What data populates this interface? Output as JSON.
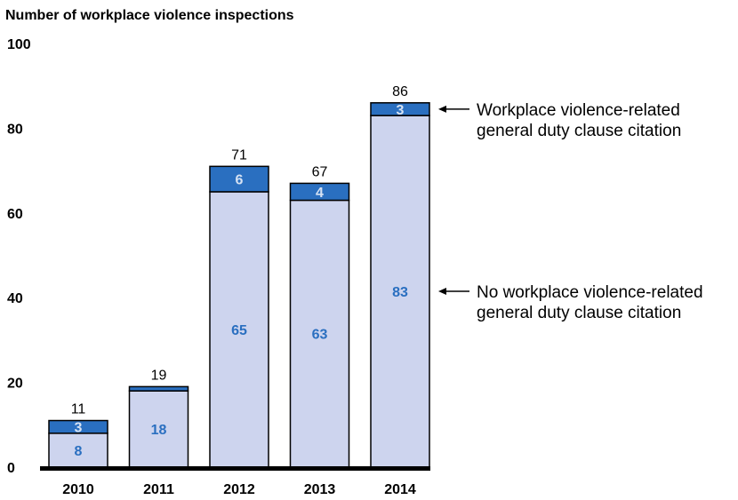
{
  "chart_data": {
    "type": "bar",
    "stacked": true,
    "title": "Number of workplace violence inspections",
    "categories": [
      "2010",
      "2011",
      "2012",
      "2013",
      "2014"
    ],
    "series": [
      {
        "name": "No workplace violence-related general duty clause citation",
        "values": [
          8,
          18,
          65,
          63,
          83
        ],
        "color": "#cdd4ee"
      },
      {
        "name": "Workplace violence-related general duty clause citation",
        "values": [
          3,
          1,
          6,
          4,
          3
        ],
        "color": "#2a6fc0"
      }
    ],
    "segment_labels": {
      "No workplace violence-related general duty clause citation": [
        "8",
        "18",
        "65",
        "63",
        "83"
      ],
      "Workplace violence-related general duty clause citation": [
        "3",
        "",
        "6",
        "4",
        "3"
      ]
    },
    "totals": [
      "11",
      "19",
      "71",
      "67",
      "86"
    ],
    "yticks": [
      "0",
      "20",
      "40",
      "60",
      "80",
      "100"
    ],
    "ylim": [
      0,
      100
    ],
    "legend_lines": {
      "Workplace violence-related general duty clause citation": [
        "Workplace violence-related",
        "general duty clause citation"
      ],
      "No workplace violence-related general duty clause citation": [
        "No workplace violence-related",
        "general duty clause citation"
      ]
    },
    "legend_placement": "right, arrows pointing to 2014 bar"
  }
}
